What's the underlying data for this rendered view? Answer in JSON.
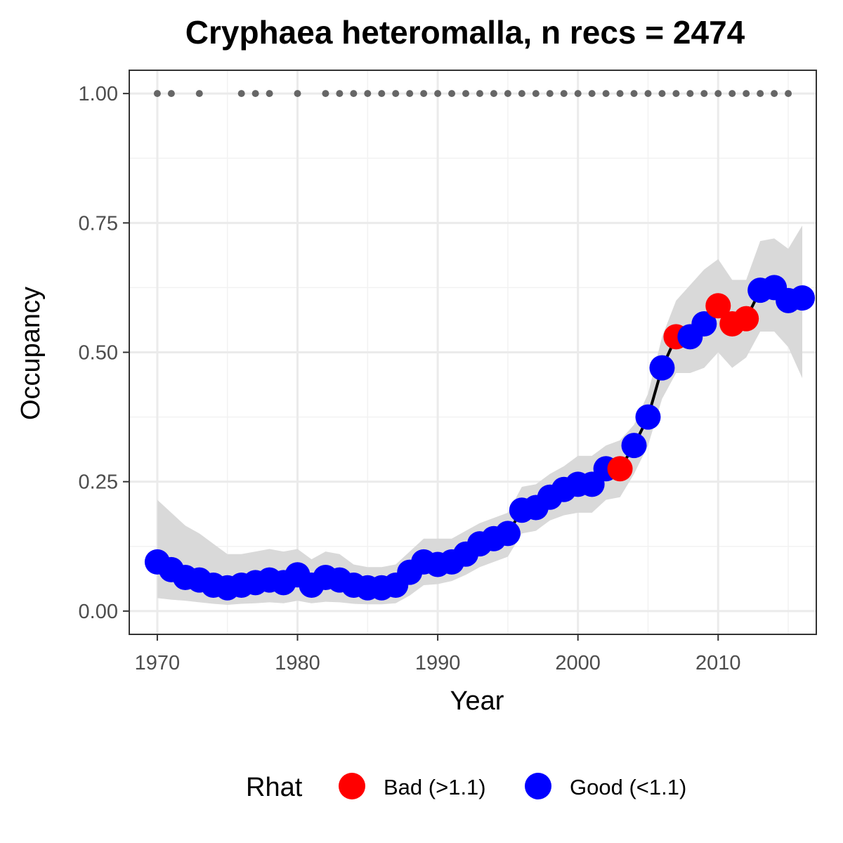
{
  "chart_data": {
    "type": "line",
    "title": "Cryphaea heteromalla, n recs = 2474",
    "xlabel": "Year",
    "ylabel": "Occupancy",
    "xlim": [
      1968,
      2017
    ],
    "ylim": [
      -0.045,
      1.045
    ],
    "x_ticks": [
      1970,
      1980,
      1990,
      2000,
      2010
    ],
    "x_tick_labels": [
      "1970",
      "1980",
      "1990",
      "2000",
      "2010"
    ],
    "y_ticks": [
      0,
      0.25,
      0.5,
      0.75,
      1.0
    ],
    "y_tick_labels": [
      "0.00",
      "0.25",
      "0.50",
      "0.75",
      "1.00"
    ],
    "grid": true,
    "legend": {
      "title": "Rhat",
      "position": "bottom",
      "entries": [
        {
          "label": "Bad (>1.1)",
          "color": "#ff0000"
        },
        {
          "label": "Good (<1.1)",
          "color": "#0000ff"
        }
      ]
    },
    "colors": {
      "bad": "#ff0000",
      "good": "#0000ff",
      "ribbon": "#d9d9d9",
      "line": "#000000",
      "records": "#666666"
    },
    "series": [
      {
        "x": [
          1970,
          1971,
          1972,
          1973,
          1974,
          1975,
          1976,
          1977,
          1978,
          1979,
          1980,
          1981,
          1982,
          1983,
          1984,
          1985,
          1986,
          1987,
          1988,
          1989,
          1990,
          1991,
          1992,
          1993,
          1994,
          1995,
          1996,
          1997,
          1998,
          1999,
          2000,
          2001,
          2002,
          2003,
          2004,
          2005,
          2006,
          2007,
          2008,
          2009,
          2010,
          2011,
          2012,
          2013,
          2014,
          2015,
          2016
        ],
        "y": [
          0.095,
          0.08,
          0.065,
          0.06,
          0.05,
          0.045,
          0.05,
          0.055,
          0.06,
          0.055,
          0.07,
          0.05,
          0.065,
          0.06,
          0.05,
          0.045,
          0.045,
          0.05,
          0.075,
          0.095,
          0.09,
          0.095,
          0.11,
          0.13,
          0.14,
          0.15,
          0.195,
          0.2,
          0.22,
          0.235,
          0.245,
          0.245,
          0.275,
          0.275,
          0.32,
          0.375,
          0.47,
          0.53,
          0.53,
          0.555,
          0.59,
          0.555,
          0.565,
          0.62,
          0.625,
          0.6,
          0.605
        ],
        "lower": [
          0.025,
          0.022,
          0.02,
          0.017,
          0.014,
          0.012,
          0.014,
          0.015,
          0.017,
          0.015,
          0.02,
          0.015,
          0.018,
          0.017,
          0.014,
          0.013,
          0.013,
          0.015,
          0.03,
          0.05,
          0.052,
          0.058,
          0.07,
          0.085,
          0.095,
          0.105,
          0.15,
          0.155,
          0.175,
          0.185,
          0.19,
          0.19,
          0.215,
          0.22,
          0.265,
          0.32,
          0.41,
          0.46,
          0.46,
          0.47,
          0.5,
          0.47,
          0.49,
          0.54,
          0.54,
          0.51,
          0.45
        ],
        "upper": [
          0.215,
          0.19,
          0.165,
          0.15,
          0.13,
          0.11,
          0.11,
          0.115,
          0.12,
          0.115,
          0.12,
          0.1,
          0.115,
          0.11,
          0.09,
          0.085,
          0.085,
          0.09,
          0.115,
          0.14,
          0.14,
          0.14,
          0.155,
          0.17,
          0.18,
          0.19,
          0.24,
          0.245,
          0.265,
          0.28,
          0.3,
          0.3,
          0.32,
          0.33,
          0.36,
          0.42,
          0.53,
          0.6,
          0.63,
          0.66,
          0.68,
          0.64,
          0.64,
          0.715,
          0.72,
          0.7,
          0.745
        ],
        "rhat": [
          "Good",
          "Good",
          "Good",
          "Good",
          "Good",
          "Good",
          "Good",
          "Good",
          "Good",
          "Good",
          "Good",
          "Good",
          "Good",
          "Good",
          "Good",
          "Good",
          "Good",
          "Good",
          "Good",
          "Good",
          "Good",
          "Good",
          "Good",
          "Good",
          "Good",
          "Good",
          "Good",
          "Good",
          "Good",
          "Good",
          "Good",
          "Good",
          "Good",
          "Bad",
          "Good",
          "Good",
          "Good",
          "Bad",
          "Good",
          "Good",
          "Bad",
          "Bad",
          "Bad",
          "Good",
          "Good",
          "Good",
          "Good"
        ]
      }
    ],
    "record_years": [
      1970,
      1971,
      1973,
      1976,
      1977,
      1978,
      1980,
      1982,
      1983,
      1984,
      1985,
      1986,
      1987,
      1988,
      1989,
      1990,
      1991,
      1992,
      1993,
      1994,
      1995,
      1996,
      1997,
      1998,
      1999,
      2000,
      2001,
      2002,
      2003,
      2004,
      2005,
      2006,
      2007,
      2008,
      2009,
      2010,
      2011,
      2012,
      2013,
      2014,
      2015
    ],
    "record_y": 1.0
  }
}
